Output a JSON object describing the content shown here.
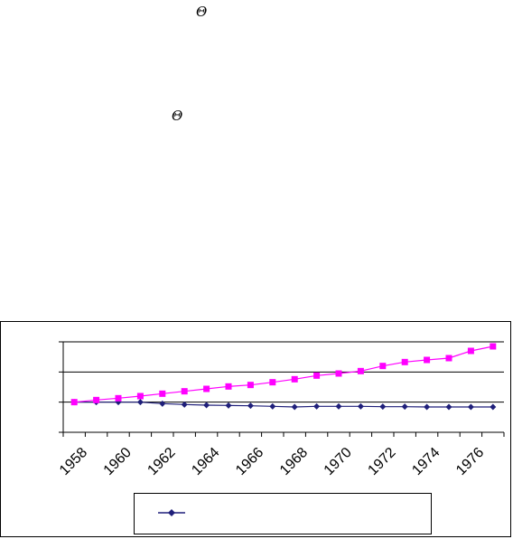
{
  "symbols": {
    "theta_1": "Θ",
    "theta_2": "Θ"
  },
  "chart_data": {
    "type": "line",
    "title": "",
    "xlabel": "",
    "ylabel": "",
    "x": [
      1958,
      1959,
      1960,
      1961,
      1962,
      1963,
      1964,
      1965,
      1966,
      1967,
      1968,
      1969,
      1970,
      1971,
      1972,
      1973,
      1974,
      1975,
      1976,
      1977
    ],
    "x_tick_labels": [
      "1958",
      "1960",
      "1962",
      "1964",
      "1966",
      "1968",
      "1970",
      "1972",
      "1974",
      "1976"
    ],
    "ylim": [
      0,
      3
    ],
    "y_gridlines": [
      1,
      2,
      3
    ],
    "y_tick_labels_visible": false,
    "series": [
      {
        "color": "#1f1f7a",
        "marker": "diamond",
        "values": [
          1.0,
          1.0,
          1.0,
          1.0,
          0.95,
          0.92,
          0.9,
          0.89,
          0.88,
          0.86,
          0.84,
          0.86,
          0.86,
          0.86,
          0.85,
          0.85,
          0.84,
          0.84,
          0.84,
          0.84
        ]
      },
      {
        "color": "#ff00ff",
        "marker": "square",
        "values": [
          1.0,
          1.07,
          1.13,
          1.2,
          1.28,
          1.36,
          1.44,
          1.52,
          1.57,
          1.66,
          1.76,
          1.88,
          1.95,
          2.03,
          2.2,
          2.33,
          2.4,
          2.46,
          2.7,
          2.85
        ]
      }
    ],
    "legend": {
      "position": "bottom",
      "entries": [
        {
          "marker": "diamond",
          "color": "#1f1f7a",
          "label": ""
        }
      ]
    },
    "grid": true
  }
}
